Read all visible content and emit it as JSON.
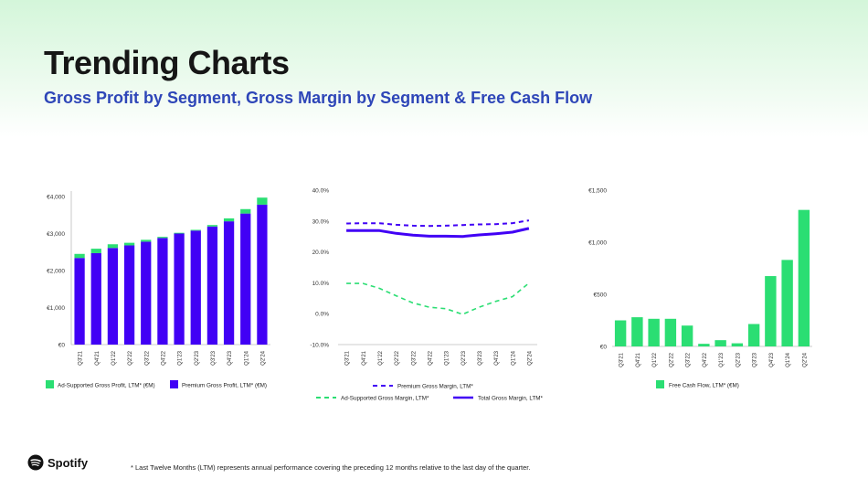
{
  "header": {
    "title": "Trending Charts",
    "subtitle": "Gross Profit by Segment, Gross Margin by Segment & Free Cash Flow"
  },
  "colors": {
    "green": "#2bde73",
    "purple": "#4100f5",
    "blue_title": "#2e46b8"
  },
  "footer": {
    "logo_text": "Spotify",
    "logo_icon": "spotify-icon",
    "footnote": "* Last Twelve Months (LTM) represents annual performance covering the preceding 12 months relative to the last day of the quarter."
  },
  "chart_data": [
    {
      "type": "bar",
      "stacked": true,
      "categories": [
        "Q3'21",
        "Q4'21",
        "Q1'22",
        "Q2'22",
        "Q3'22",
        "Q4'22",
        "Q1'23",
        "Q2'23",
        "Q3'23",
        "Q4'23",
        "Q1'24",
        "Q2'24"
      ],
      "series": [
        {
          "name": "Premium Gross Profit, LTM* (€M)",
          "color": "#4100f5",
          "values": [
            2340,
            2470,
            2610,
            2680,
            2780,
            2880,
            3000,
            3080,
            3190,
            3330,
            3540,
            3780
          ]
        },
        {
          "name": "Ad-Supported Gross Profit, LTM* (€M)",
          "color": "#2bde73",
          "values": [
            110,
            120,
            100,
            70,
            50,
            30,
            20,
            20,
            40,
            80,
            120,
            190
          ]
        }
      ],
      "yticks": [
        "€0",
        "€1,000",
        "€2,000",
        "€3,000",
        "€4,000"
      ],
      "ylim": [
        0,
        4000
      ],
      "legend": [
        "Ad-Supported Gross Profit, LTM* (€M)",
        "Premium Gross Profit, LTM* (€M)"
      ]
    },
    {
      "type": "line",
      "categories": [
        "Q3'21",
        "Q4'21",
        "Q1'22",
        "Q2'22",
        "Q3'22",
        "Q4'22",
        "Q1'23",
        "Q2'23",
        "Q3'23",
        "Q4'23",
        "Q1'24",
        "Q2'24"
      ],
      "series": [
        {
          "name": "Premium Gross Margin, LTM*",
          "color": "#4100f5",
          "dashed": true,
          "width": 2,
          "values": [
            29.2,
            29.3,
            29.3,
            28.8,
            28.5,
            28.4,
            28.5,
            28.7,
            28.9,
            29.0,
            29.3,
            30.2
          ]
        },
        {
          "name": "Ad-Supported Gross Margin, LTM*",
          "color": "#2bde73",
          "dashed": true,
          "width": 1.6,
          "values": [
            9.8,
            9.8,
            8.2,
            5.8,
            3.5,
            2.1,
            1.6,
            -0.2,
            2.1,
            4.0,
            5.5,
            9.9
          ]
        },
        {
          "name": "Total Gross Margin, LTM*",
          "color": "#4100f5",
          "dashed": false,
          "width": 3,
          "values": [
            26.9,
            26.9,
            26.9,
            26.0,
            25.4,
            25.1,
            25.1,
            25.0,
            25.5,
            25.9,
            26.4,
            27.6
          ]
        }
      ],
      "yticks": [
        "-10.0%",
        "0.0%",
        "10.0%",
        "20.0%",
        "30.0%",
        "40.0%"
      ],
      "ylim": [
        -10,
        40
      ],
      "legend": [
        "Premium Gross Margin, LTM*",
        "Ad-Supported Gross Margin, LTM*",
        "Total Gross Margin, LTM*"
      ]
    },
    {
      "type": "bar",
      "categories": [
        "Q3'21",
        "Q4'21",
        "Q1'22",
        "Q2'22",
        "Q3'22",
        "Q4'22",
        "Q1'23",
        "Q2'23",
        "Q3'23",
        "Q4'23",
        "Q1'24",
        "Q2'24"
      ],
      "series": [
        {
          "name": "Free Cash Flow, LTM* (€M)",
          "color": "#2bde73",
          "values": [
            250,
            280,
            265,
            265,
            200,
            25,
            60,
            30,
            215,
            675,
            830,
            1310
          ]
        }
      ],
      "yticks": [
        "€0",
        "€500",
        "€1,000",
        "€1,500"
      ],
      "ylim": [
        0,
        1500
      ],
      "legend": [
        "Free Cash Flow, LTM* (€M)"
      ]
    }
  ]
}
